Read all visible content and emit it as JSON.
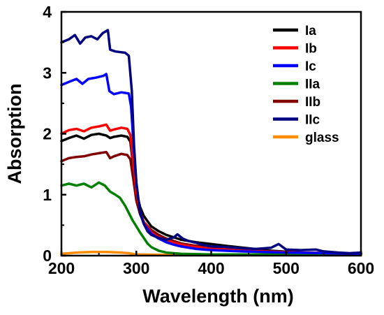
{
  "chart_data": {
    "type": "line",
    "title": "",
    "xlabel": "Wavelength (nm)",
    "ylabel": "Absorption",
    "xlim": [
      200,
      600
    ],
    "ylim": [
      0,
      4
    ],
    "xticks": [
      "200",
      "300",
      "400",
      "500",
      "600"
    ],
    "yticks": [
      "0",
      "1",
      "2",
      "3",
      "4"
    ],
    "grid": false,
    "legend_position": "top-right",
    "series": [
      {
        "name": "Ia",
        "color": "#000000",
        "points": [
          [
            200,
            1.88
          ],
          [
            210,
            1.93
          ],
          [
            220,
            1.97
          ],
          [
            230,
            1.92
          ],
          [
            240,
            1.98
          ],
          [
            250,
            2.0
          ],
          [
            260,
            1.97
          ],
          [
            265,
            1.93
          ],
          [
            270,
            1.95
          ],
          [
            280,
            1.97
          ],
          [
            288,
            1.95
          ],
          [
            292,
            1.87
          ],
          [
            296,
            1.45
          ],
          [
            300,
            1.05
          ],
          [
            305,
            0.8
          ],
          [
            310,
            0.65
          ],
          [
            320,
            0.48
          ],
          [
            330,
            0.4
          ],
          [
            340,
            0.34
          ],
          [
            350,
            0.3
          ],
          [
            360,
            0.26
          ],
          [
            380,
            0.22
          ],
          [
            400,
            0.19
          ],
          [
            420,
            0.16
          ],
          [
            450,
            0.12
          ],
          [
            480,
            0.08
          ],
          [
            520,
            0.05
          ],
          [
            560,
            0.04
          ],
          [
            600,
            0.03
          ]
        ]
      },
      {
        "name": "Ib",
        "color": "#ff0000",
        "points": [
          [
            200,
            2.0
          ],
          [
            210,
            2.06
          ],
          [
            220,
            2.08
          ],
          [
            230,
            2.04
          ],
          [
            240,
            2.1
          ],
          [
            250,
            2.12
          ],
          [
            260,
            2.15
          ],
          [
            265,
            2.05
          ],
          [
            270,
            2.07
          ],
          [
            280,
            2.1
          ],
          [
            288,
            2.08
          ],
          [
            292,
            1.98
          ],
          [
            296,
            1.5
          ],
          [
            300,
            1.05
          ],
          [
            305,
            0.72
          ],
          [
            310,
            0.55
          ],
          [
            320,
            0.38
          ],
          [
            330,
            0.3
          ],
          [
            340,
            0.25
          ],
          [
            350,
            0.21
          ],
          [
            360,
            0.18
          ],
          [
            380,
            0.14
          ],
          [
            400,
            0.12
          ],
          [
            430,
            0.1
          ],
          [
            470,
            0.07
          ],
          [
            520,
            0.05
          ],
          [
            560,
            0.04
          ],
          [
            600,
            0.03
          ]
        ]
      },
      {
        "name": "Ic",
        "color": "#0000ff",
        "points": [
          [
            200,
            2.8
          ],
          [
            210,
            2.85
          ],
          [
            220,
            2.9
          ],
          [
            228,
            2.82
          ],
          [
            236,
            2.9
          ],
          [
            246,
            2.92
          ],
          [
            256,
            2.95
          ],
          [
            260,
            2.98
          ],
          [
            264,
            2.7
          ],
          [
            270,
            2.65
          ],
          [
            280,
            2.68
          ],
          [
            290,
            2.66
          ],
          [
            293,
            2.45
          ],
          [
            297,
            1.7
          ],
          [
            300,
            1.18
          ],
          [
            305,
            0.72
          ],
          [
            310,
            0.52
          ],
          [
            320,
            0.36
          ],
          [
            330,
            0.28
          ],
          [
            340,
            0.22
          ],
          [
            350,
            0.18
          ],
          [
            360,
            0.15
          ],
          [
            380,
            0.11
          ],
          [
            400,
            0.09
          ],
          [
            440,
            0.07
          ],
          [
            500,
            0.05
          ],
          [
            560,
            0.04
          ],
          [
            600,
            0.03
          ]
        ]
      },
      {
        "name": "IIa",
        "color": "#008000",
        "points": [
          [
            200,
            1.15
          ],
          [
            210,
            1.18
          ],
          [
            220,
            1.15
          ],
          [
            230,
            1.18
          ],
          [
            240,
            1.12
          ],
          [
            250,
            1.2
          ],
          [
            258,
            1.15
          ],
          [
            265,
            1.05
          ],
          [
            272,
            1.0
          ],
          [
            278,
            0.95
          ],
          [
            285,
            0.82
          ],
          [
            290,
            0.7
          ],
          [
            295,
            0.58
          ],
          [
            300,
            0.48
          ],
          [
            305,
            0.38
          ],
          [
            310,
            0.29
          ],
          [
            315,
            0.2
          ],
          [
            320,
            0.14
          ],
          [
            330,
            0.08
          ],
          [
            340,
            0.05
          ],
          [
            360,
            0.03
          ],
          [
            400,
            0.02
          ],
          [
            500,
            0.02
          ],
          [
            600,
            0.02
          ]
        ]
      },
      {
        "name": "IIb",
        "color": "#800000",
        "points": [
          [
            200,
            1.55
          ],
          [
            210,
            1.6
          ],
          [
            220,
            1.62
          ],
          [
            230,
            1.63
          ],
          [
            240,
            1.66
          ],
          [
            250,
            1.68
          ],
          [
            260,
            1.7
          ],
          [
            265,
            1.6
          ],
          [
            270,
            1.63
          ],
          [
            280,
            1.67
          ],
          [
            288,
            1.65
          ],
          [
            292,
            1.58
          ],
          [
            296,
            1.25
          ],
          [
            300,
            0.9
          ],
          [
            305,
            0.68
          ],
          [
            310,
            0.55
          ],
          [
            320,
            0.42
          ],
          [
            330,
            0.34
          ],
          [
            340,
            0.28
          ],
          [
            350,
            0.24
          ],
          [
            360,
            0.2
          ],
          [
            380,
            0.16
          ],
          [
            400,
            0.13
          ],
          [
            430,
            0.11
          ],
          [
            470,
            0.08
          ],
          [
            520,
            0.05
          ],
          [
            560,
            0.04
          ],
          [
            600,
            0.03
          ]
        ]
      },
      {
        "name": "IIc",
        "color": "#000080",
        "points": [
          [
            200,
            3.5
          ],
          [
            210,
            3.55
          ],
          [
            218,
            3.62
          ],
          [
            225,
            3.48
          ],
          [
            232,
            3.58
          ],
          [
            240,
            3.6
          ],
          [
            248,
            3.55
          ],
          [
            255,
            3.65
          ],
          [
            262,
            3.7
          ],
          [
            265,
            3.38
          ],
          [
            272,
            3.35
          ],
          [
            285,
            3.33
          ],
          [
            290,
            3.28
          ],
          [
            294,
            2.7
          ],
          [
            297,
            1.8
          ],
          [
            300,
            1.2
          ],
          [
            305,
            0.7
          ],
          [
            310,
            0.52
          ],
          [
            315,
            0.4
          ],
          [
            320,
            0.34
          ],
          [
            330,
            0.29
          ],
          [
            340,
            0.26
          ],
          [
            350,
            0.3
          ],
          [
            355,
            0.35
          ],
          [
            362,
            0.28
          ],
          [
            370,
            0.24
          ],
          [
            380,
            0.21
          ],
          [
            390,
            0.17
          ],
          [
            400,
            0.15
          ],
          [
            420,
            0.14
          ],
          [
            440,
            0.12
          ],
          [
            460,
            0.11
          ],
          [
            480,
            0.13
          ],
          [
            490,
            0.19
          ],
          [
            500,
            0.1
          ],
          [
            520,
            0.09
          ],
          [
            540,
            0.1
          ],
          [
            550,
            0.07
          ],
          [
            570,
            0.05
          ],
          [
            585,
            0.04
          ],
          [
            600,
            0.05
          ]
        ]
      },
      {
        "name": "glass",
        "color": "#ff8c00",
        "points": [
          [
            200,
            0.03
          ],
          [
            220,
            0.05
          ],
          [
            240,
            0.06
          ],
          [
            260,
            0.06
          ],
          [
            280,
            0.05
          ],
          [
            290,
            0.04
          ],
          [
            300,
            0.02
          ],
          [
            350,
            0.01
          ],
          [
            400,
            0.01
          ],
          [
            500,
            0.01
          ],
          [
            600,
            0.01
          ]
        ]
      }
    ]
  }
}
